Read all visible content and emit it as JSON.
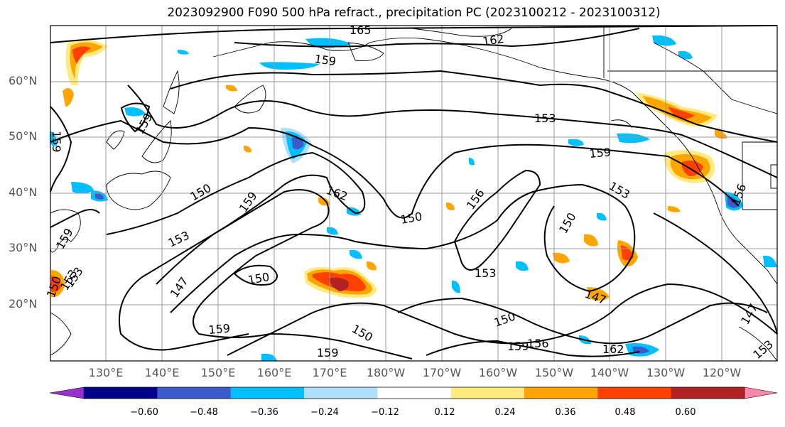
{
  "title": "2023092900 F090 500 hPa refract., precipitation PC (2023100212 - 2023100312)",
  "lat_labels": [
    "60°N",
    "50°N",
    "40°N",
    "30°N",
    "20°N"
  ],
  "lon_labels": [
    "130°E",
    "140°E",
    "150°E",
    "160°E",
    "170°E",
    "180°W",
    "170°W",
    "160°W",
    "150°W",
    "140°W",
    "130°W",
    "120°W"
  ],
  "contour_labels": [
    "165",
    "162",
    "159",
    "153",
    "159",
    "153",
    "159",
    "150",
    "159",
    "162",
    "156",
    "150",
    "153",
    "150",
    "153",
    "159",
    "159",
    "150",
    "147",
    "153",
    "150",
    "159",
    "150",
    "150",
    "147",
    "159",
    "156",
    "159",
    "162",
    "147",
    "153",
    "156",
    "153"
  ],
  "colorbar": {
    "ticks": [
      "−0.60",
      "−0.48",
      "−0.36",
      "−0.24",
      "−0.12",
      "0.12",
      "0.24",
      "0.36",
      "0.48",
      "0.60"
    ],
    "colors": [
      "#9932CC",
      "#00008B",
      "#3A5BCC",
      "#00BFFF",
      "#ADDFFF",
      "#FFFFFF",
      "#FFEB80",
      "#FFA500",
      "#FF4000",
      "#B22222",
      "#FF88AA"
    ]
  }
}
